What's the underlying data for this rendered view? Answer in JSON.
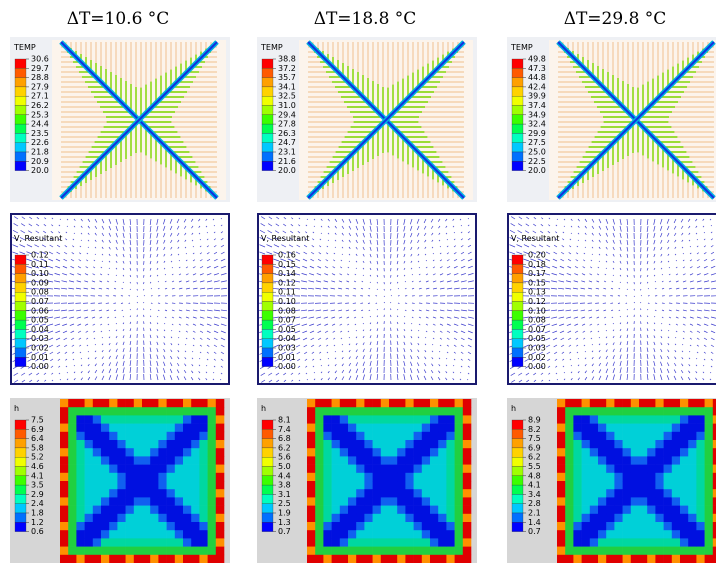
{
  "columns": [
    {
      "title": "ΔT=10.6 °C",
      "panels": [
        {
          "legend_title": "TEMP",
          "legend_values": [
            "30.6",
            "29.7",
            "28.8",
            "27.9",
            "27.1",
            "26.2",
            "25.3",
            "24.4",
            "23.5",
            "22.6",
            "21.8",
            "20.9",
            "20.0"
          ]
        },
        {
          "legend_title": "V, Resultant",
          "legend_values": [
            "0.12",
            "0.11",
            "0.10",
            "0.09",
            "0.08",
            "0.07",
            "0.06",
            "0.05",
            "0.04",
            "0.03",
            "0.02",
            "0.01",
            "0.00"
          ]
        },
        {
          "legend_title": "h",
          "legend_values": [
            "7.5",
            "6.9",
            "6.4",
            "5.8",
            "5.2",
            "4.6",
            "4.1",
            "3.5",
            "2.9",
            "2.4",
            "1.8",
            "1.2",
            "0.6"
          ]
        }
      ]
    },
    {
      "title": "ΔT=18.8 °C",
      "panels": [
        {
          "legend_title": "TEMP",
          "legend_values": [
            "38.8",
            "37.2",
            "35.7",
            "34.1",
            "32.5",
            "31.0",
            "29.4",
            "27.8",
            "26.3",
            "24.7",
            "23.1",
            "21.6",
            "20.0"
          ]
        },
        {
          "legend_title": "V, Resultant",
          "legend_values": [
            "0.16",
            "0.15",
            "0.14",
            "0.12",
            "0.11",
            "0.10",
            "0.08",
            "0.07",
            "0.05",
            "0.04",
            "0.03",
            "0.01",
            "0.00"
          ]
        },
        {
          "legend_title": "h",
          "legend_values": [
            "8.1",
            "7.4",
            "6.8",
            "6.2",
            "5.6",
            "5.0",
            "4.4",
            "3.8",
            "3.1",
            "2.5",
            "1.9",
            "1.3",
            "0.7"
          ]
        }
      ]
    },
    {
      "title": "ΔT=29.8 °C",
      "panels": [
        {
          "legend_title": "TEMP",
          "legend_values": [
            "49.8",
            "47.3",
            "44.8",
            "42.4",
            "39.9",
            "37.4",
            "34.9",
            "32.4",
            "29.9",
            "27.5",
            "25.0",
            "22.5",
            "20.0"
          ]
        },
        {
          "legend_title": "V, Resultant",
          "legend_values": [
            "0.20",
            "0.18",
            "0.17",
            "0.15",
            "0.13",
            "0.12",
            "0.10",
            "0.08",
            "0.07",
            "0.05",
            "0.03",
            "0.02",
            "0.00"
          ]
        },
        {
          "legend_title": "h",
          "legend_values": [
            "8.9",
            "8.2",
            "7.5",
            "6.9",
            "6.2",
            "5.5",
            "4.8",
            "4.1",
            "3.4",
            "2.8",
            "2.1",
            "1.4",
            "0.7"
          ]
        }
      ]
    }
  ]
}
